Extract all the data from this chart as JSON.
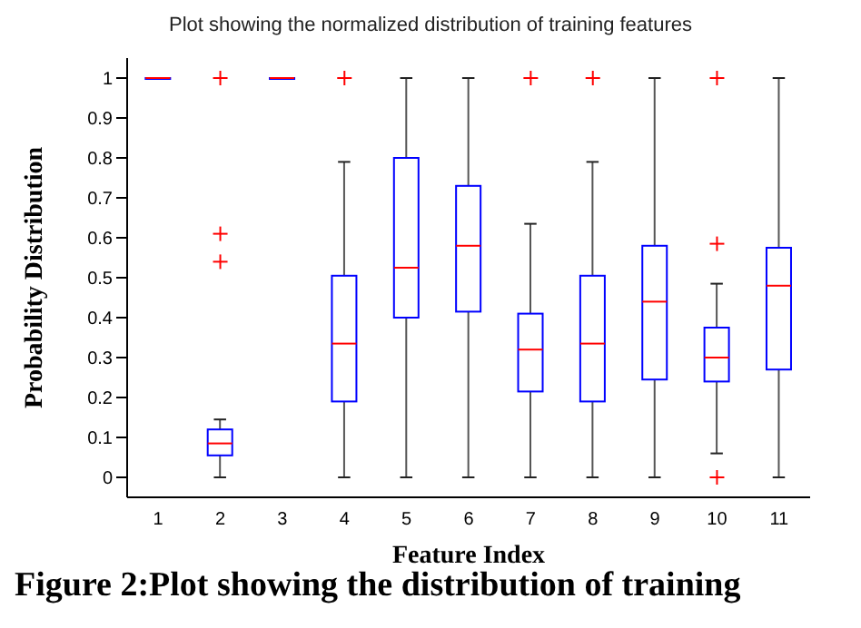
{
  "chart_data": {
    "type": "box",
    "title": "Plot showing the normalized distribution of training features",
    "xlabel": "Feature Index",
    "ylabel": "Probability Distribution",
    "annotations": [
      "Figure 2:Plot showing the distribution of training"
    ],
    "categories": [
      "1",
      "2",
      "3",
      "4",
      "5",
      "6",
      "7",
      "8",
      "9",
      "10",
      "11"
    ],
    "boxes": [
      {
        "low": 1,
        "q1": 1,
        "median": 1,
        "q3": 1,
        "high": 1
      },
      {
        "low": 0,
        "q1": 0.055,
        "median": 0.085,
        "q3": 0.12,
        "high": 0.145,
        "outliers": [
          0.54,
          0.61,
          1
        ]
      },
      {
        "low": 1,
        "q1": 1,
        "median": 1,
        "q3": 1,
        "high": 1
      },
      {
        "low": 0,
        "q1": 0.19,
        "median": 0.335,
        "q3": 0.505,
        "high": 0.79,
        "outliers": [
          1
        ]
      },
      {
        "low": 0,
        "q1": 0.4,
        "median": 0.525,
        "q3": 0.8,
        "high": 1
      },
      {
        "low": 0,
        "q1": 0.415,
        "median": 0.58,
        "q3": 0.73,
        "high": 1
      },
      {
        "low": 0,
        "q1": 0.215,
        "median": 0.32,
        "q3": 0.41,
        "high": 0.635,
        "outliers": [
          1
        ]
      },
      {
        "low": 0,
        "q1": 0.19,
        "median": 0.335,
        "q3": 0.505,
        "high": 0.79,
        "outliers": [
          1
        ]
      },
      {
        "low": 0,
        "q1": 0.245,
        "median": 0.44,
        "q3": 0.58,
        "high": 1
      },
      {
        "low": 0.06,
        "q1": 0.24,
        "median": 0.3,
        "q3": 0.375,
        "high": 0.485,
        "outliers": [
          0,
          0.585,
          1
        ]
      },
      {
        "low": 0,
        "q1": 0.27,
        "median": 0.48,
        "q3": 0.575,
        "high": 1
      }
    ],
    "color": "#0000ff",
    "marker": "cross",
    "ylim": [
      -0.05,
      1.05
    ],
    "yticks": [
      0,
      0.1,
      0.2,
      0.3,
      0.4,
      0.5,
      0.6,
      0.7,
      0.8,
      0.9,
      1
    ]
  }
}
